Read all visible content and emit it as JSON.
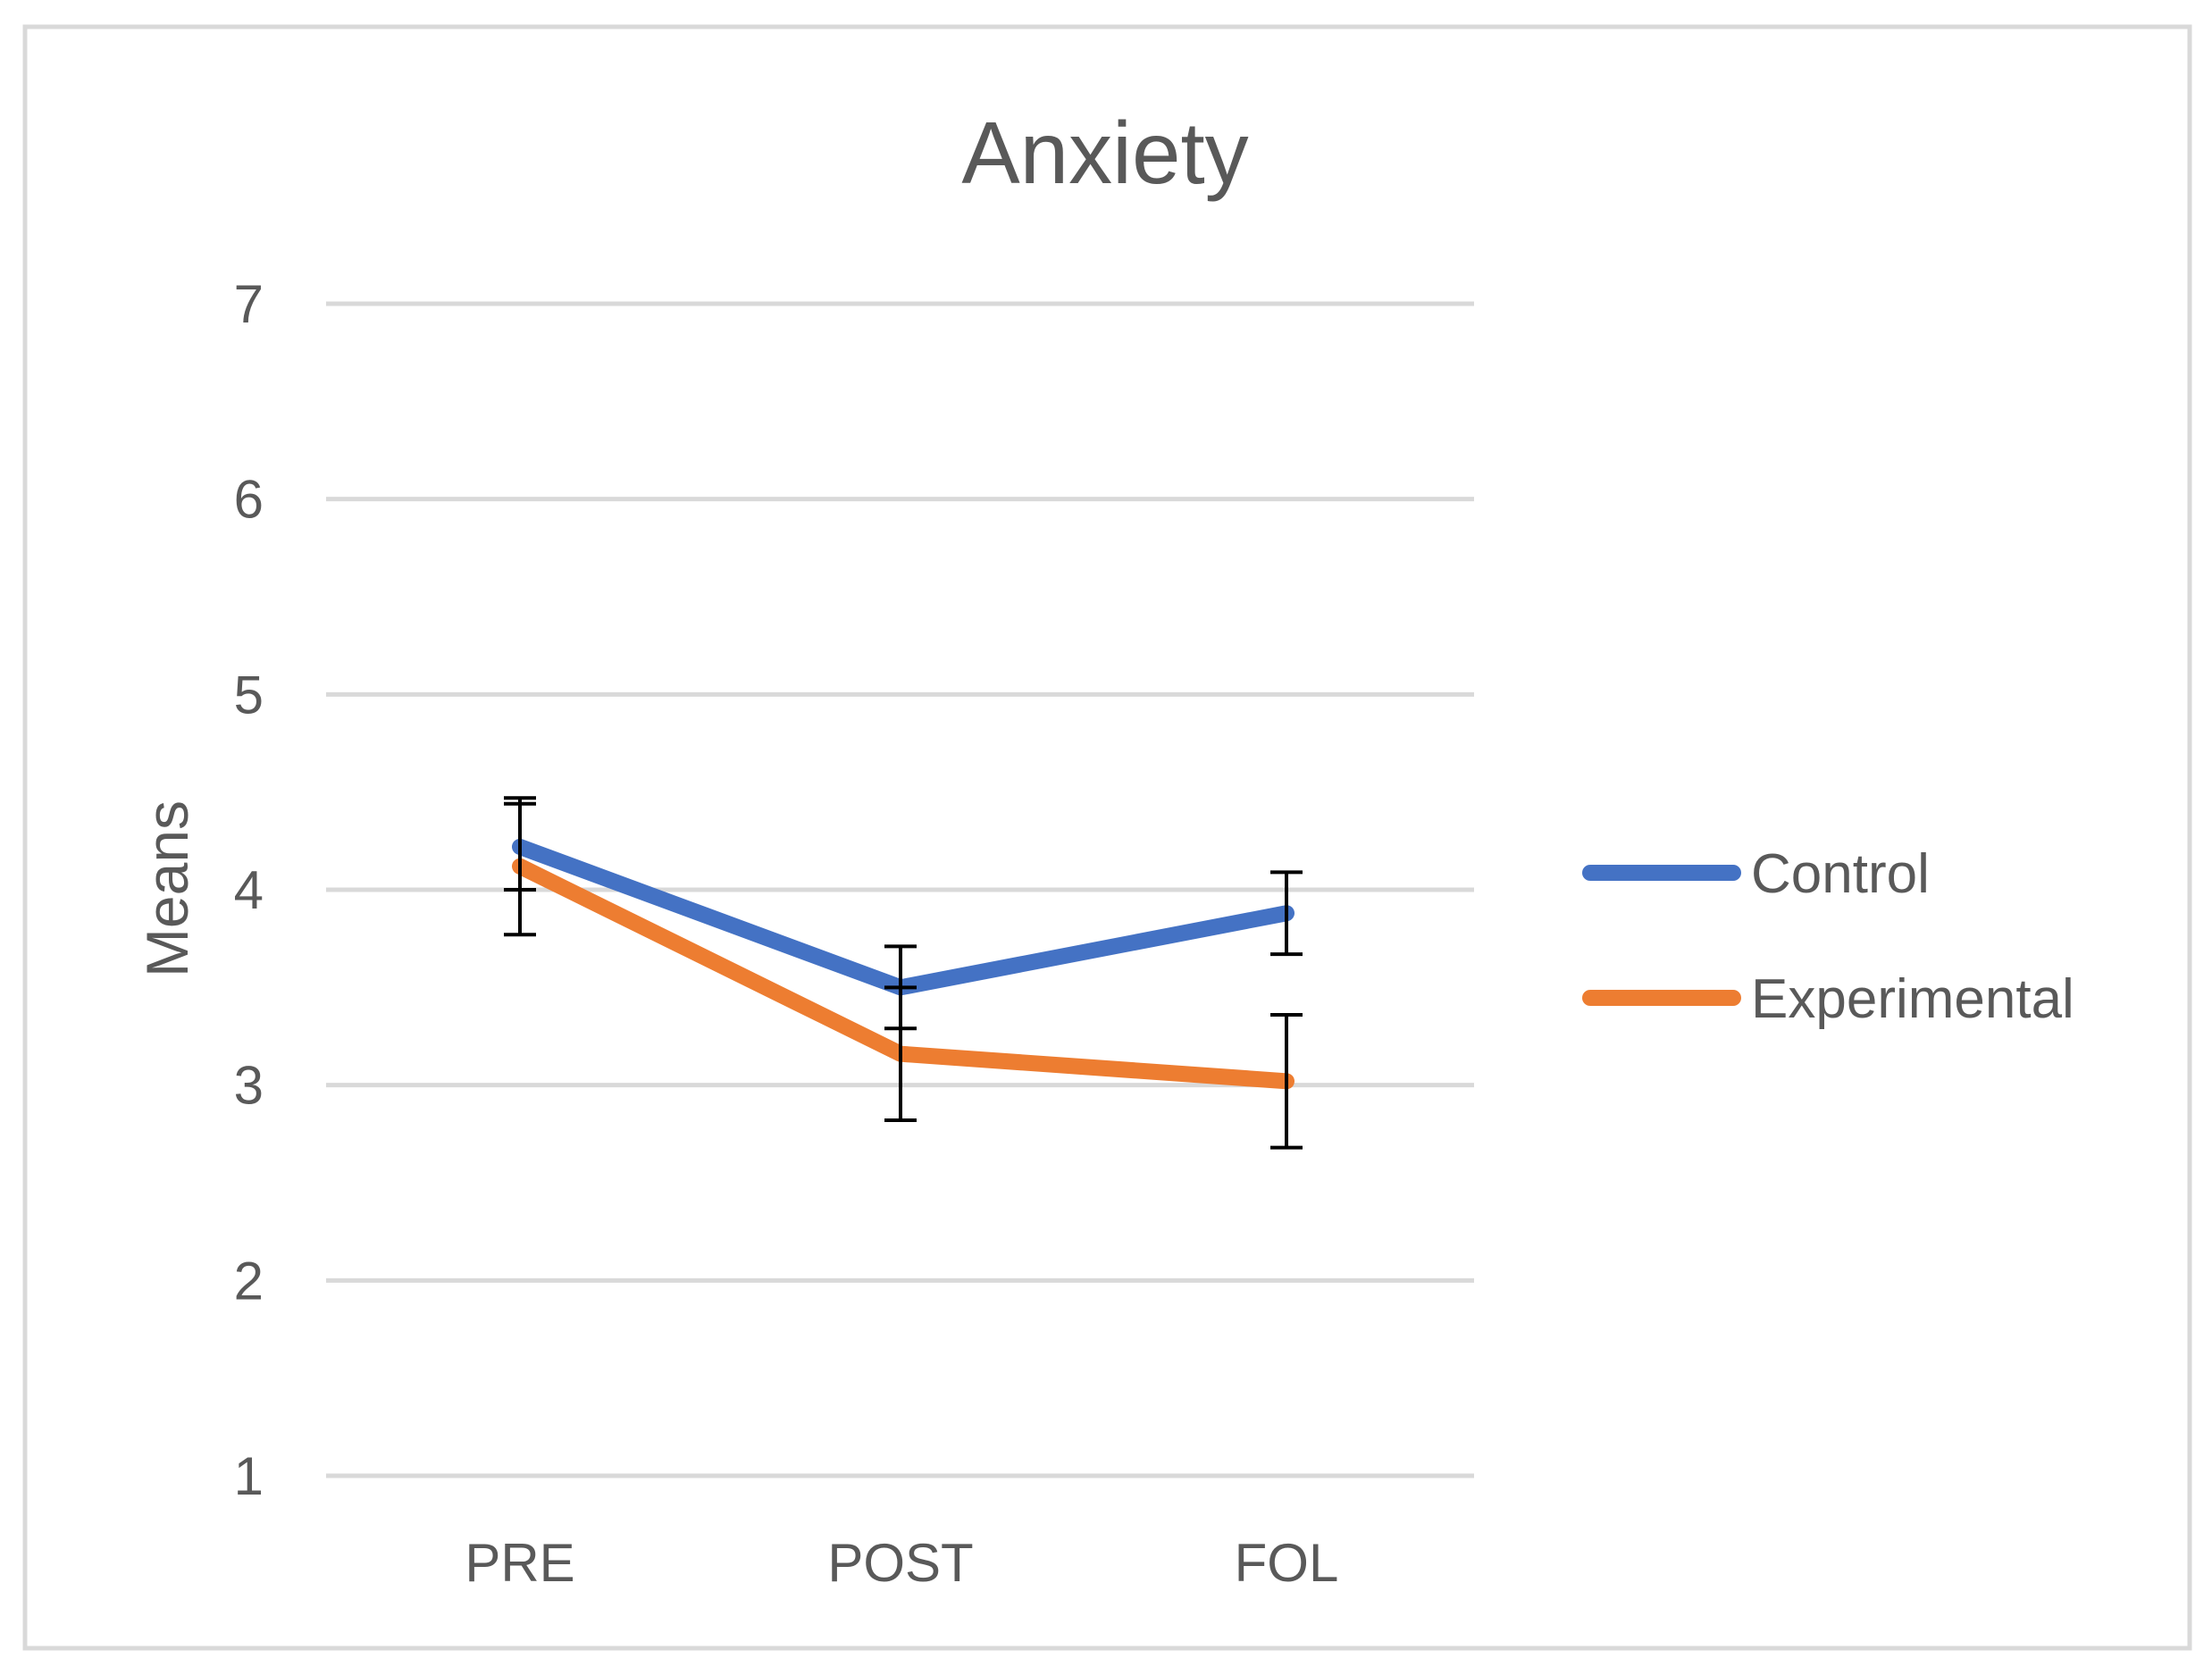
{
  "chart_data": {
    "type": "line",
    "title": "Anxiety",
    "xlabel": "",
    "ylabel": "Means",
    "categories": [
      "PRE",
      "POST",
      "FOL"
    ],
    "ylim": [
      1,
      7
    ],
    "yticks": [
      1,
      2,
      3,
      4,
      5,
      6,
      7
    ],
    "grid": true,
    "legend_position": "right",
    "series": [
      {
        "name": "Control",
        "color": "#4472C4",
        "values": [
          4.22,
          3.5,
          3.88
        ],
        "error": [
          0.22,
          0.21,
          0.21
        ]
      },
      {
        "name": "Experimental",
        "color": "#ED7D31",
        "values": [
          4.12,
          3.16,
          3.02
        ],
        "error": [
          0.35,
          0.34,
          0.34
        ]
      }
    ],
    "colors": {
      "text": "#595959",
      "grid": "#D9D9D9",
      "border": "#D9D9D9",
      "error_bar": "#000000"
    }
  }
}
